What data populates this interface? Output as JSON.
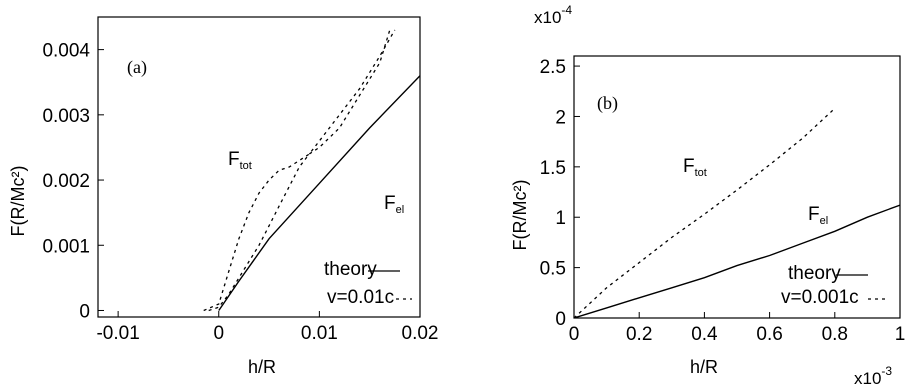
{
  "charts": [
    {
      "panel_label": "(a)",
      "xlabel": "h/R",
      "ylabel": "F(R/Mc²)",
      "x_tick_labels": [
        "-0.01",
        "0",
        "0.01",
        "0.02"
      ],
      "y_tick_labels": [
        "0",
        "0.001",
        "0.002",
        "0.003",
        "0.004"
      ],
      "annotations": {
        "ftot": {
          "main": "F",
          "sub": "tot"
        },
        "fel": {
          "main": "F",
          "sub": "el"
        }
      },
      "legend": {
        "theory": "theory",
        "sim": "v=0.01c"
      }
    },
    {
      "panel_label": "(b)",
      "xlabel": "h/R",
      "ylabel": "F(R/Mc²)",
      "x_tick_labels": [
        "0",
        "0.2",
        "0.4",
        "0.6",
        "0.8",
        "1"
      ],
      "y_tick_labels": [
        "0",
        "0.5",
        "1",
        "1.5",
        "2",
        "2.5"
      ],
      "x_multiplier": {
        "base": "x10",
        "exp": "-3"
      },
      "y_multiplier": {
        "base": "x10",
        "exp": "-4"
      },
      "annotations": {
        "ftot": {
          "main": "F",
          "sub": "tot"
        },
        "fel": {
          "main": "F",
          "sub": "el"
        }
      },
      "legend": {
        "theory": "theory",
        "sim": "v=0.001c"
      }
    }
  ],
  "chart_data": [
    {
      "type": "line",
      "title": "",
      "xlabel": "h/R",
      "ylabel": "F(R/Mc²)",
      "xlim": [
        -0.012,
        0.02
      ],
      "ylim": [
        -0.0001,
        0.0045
      ],
      "grid": false,
      "legend_position": "bottom-right",
      "series": [
        {
          "name": "theory",
          "style": "solid",
          "x": [
            0,
            0.002,
            0.005,
            0.01,
            0.015,
            0.02
          ],
          "y": [
            0,
            0.00045,
            0.0011,
            0.00195,
            0.0028,
            0.0036
          ]
        },
        {
          "name": "v=0.01c",
          "style": "dashed",
          "curve": "F_tot",
          "x": [
            -0.0015,
            0,
            0.001,
            0.002,
            0.003,
            0.004,
            0.005,
            0.006,
            0.007,
            0.008,
            0.009,
            0.01,
            0.012,
            0.014,
            0.016,
            0.0175
          ],
          "y": [
            0,
            0.0001,
            0.0006,
            0.0011,
            0.0015,
            0.0018,
            0.002,
            0.00215,
            0.0022,
            0.0023,
            0.0024,
            0.0026,
            0.003,
            0.0034,
            0.0039,
            0.0043
          ]
        },
        {
          "name": "v=0.01c",
          "style": "dashed",
          "curve": "F_el",
          "x": [
            -0.001,
            0,
            0.001,
            0.002,
            0.003,
            0.004,
            0.005,
            0.006,
            0.007,
            0.008,
            0.009,
            0.01,
            0.012,
            0.014,
            0.016,
            0.017
          ],
          "y": [
            0,
            5e-05,
            0.00025,
            0.0005,
            0.00075,
            0.001,
            0.0013,
            0.0016,
            0.0019,
            0.0022,
            0.0024,
            0.0025,
            0.0028,
            0.0033,
            0.0038,
            0.0043
          ]
        }
      ]
    },
    {
      "type": "line",
      "title": "",
      "xlabel": "h/R",
      "ylabel": "F(R/Mc²)",
      "x_scale_factor": "x10^-3",
      "y_scale_factor": "x10^-4",
      "xlim": [
        0,
        1
      ],
      "ylim": [
        0,
        2.6
      ],
      "grid": false,
      "legend_position": "bottom-right",
      "series": [
        {
          "name": "theory",
          "style": "solid",
          "x": [
            0,
            0.1,
            0.2,
            0.3,
            0.4,
            0.5,
            0.6,
            0.7,
            0.8,
            0.9,
            1.0
          ],
          "y": [
            0,
            0.1,
            0.2,
            0.3,
            0.4,
            0.52,
            0.62,
            0.74,
            0.86,
            1.0,
            1.12
          ]
        },
        {
          "name": "v=0.001c",
          "style": "dashed",
          "curve": "F_tot",
          "x": [
            0,
            0.1,
            0.2,
            0.3,
            0.4,
            0.5,
            0.6,
            0.7,
            0.8
          ],
          "y": [
            0,
            0.3,
            0.55,
            0.8,
            1.03,
            1.27,
            1.52,
            1.78,
            2.08
          ]
        }
      ]
    }
  ]
}
